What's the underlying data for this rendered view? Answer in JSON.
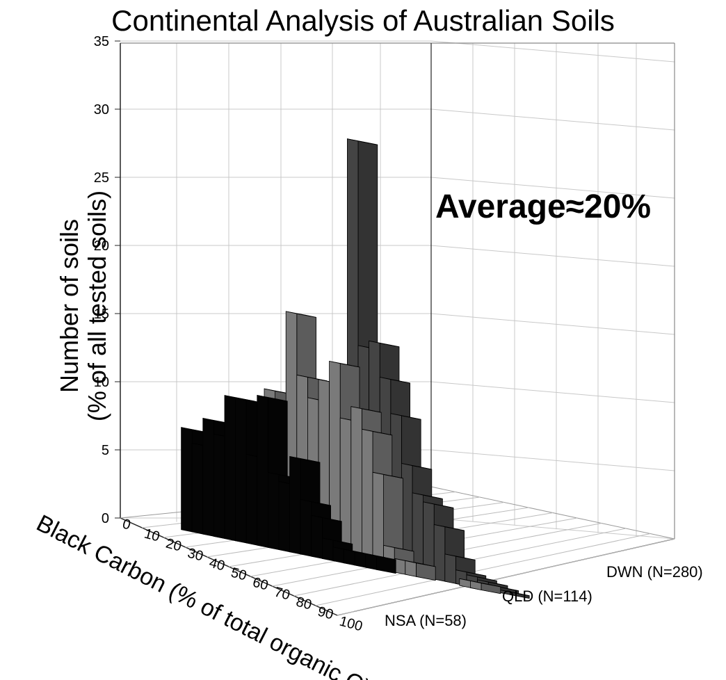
{
  "chart_data": {
    "type": "bar3d",
    "title": "Continental Analysis of Australian Soils",
    "ylabel_line1": "Number of soils",
    "ylabel_line2": "(% of all tested soils)",
    "xlabel": "Black Carbon (% of total organic C)",
    "annotation": "Average≈20%",
    "ylim": [
      0,
      35
    ],
    "y_ticks": [
      "0",
      "5",
      "10",
      "15",
      "20",
      "25",
      "30",
      "35"
    ],
    "x_tick_labels": [
      "0",
      "10",
      "20",
      "30",
      "40",
      "50",
      "60",
      "70",
      "80",
      "90",
      "100"
    ],
    "bin_edges": [
      0,
      100
    ],
    "bin_width": 5,
    "series": [
      {
        "name": "NSA (N=58)",
        "color": "#050505",
        "values": [
          7.5,
          6.5,
          8.5,
          7.5,
          10.5,
          10.5,
          6.5,
          11.0,
          5.5,
          5.0,
          7.0,
          4.0,
          3.0,
          1.5,
          1.0,
          1.0,
          1.0,
          1.0,
          0,
          0
        ]
      },
      {
        "name": "QLD (N=114)",
        "color": "#7a7a7a",
        "values": [
          11.5,
          9.5,
          17.5,
          13.0,
          11.5,
          13.0,
          14.5,
          10.5,
          11.5,
          10.0,
          7.0,
          1.8,
          1.0,
          1.0,
          0,
          0,
          0,
          0,
          0.5,
          0.5
        ]
      },
      {
        "name": "DWN (N=280)",
        "color": "#444444",
        "values": [
          31.0,
          16.0,
          16.5,
          14.0,
          11.5,
          8.0,
          6.0,
          5.5,
          4.0,
          2.0,
          1.0,
          0.8,
          0.6,
          0.4,
          0.2,
          0,
          0,
          0,
          0,
          0
        ]
      }
    ],
    "grid": true
  }
}
